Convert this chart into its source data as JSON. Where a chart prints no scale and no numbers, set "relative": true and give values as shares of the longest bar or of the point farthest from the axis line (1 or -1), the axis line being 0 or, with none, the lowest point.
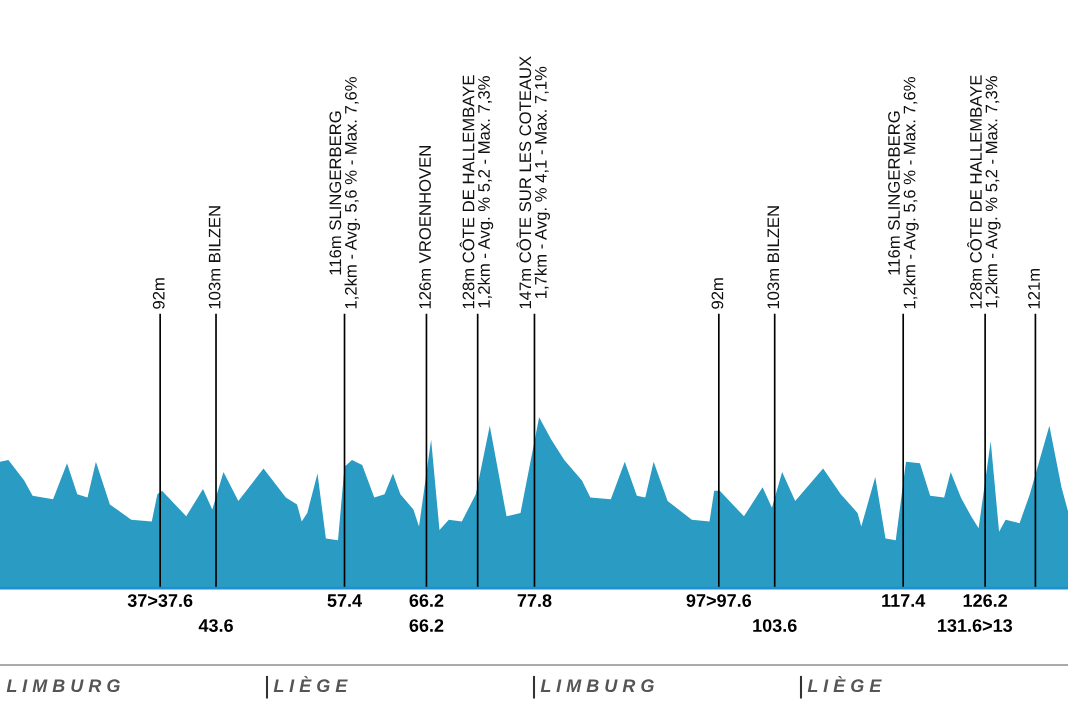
{
  "chart_data": {
    "type": "area",
    "relative": true,
    "xlim": [
      20.4,
      135.1
    ],
    "x": [
      20.4,
      21.3,
      23.0,
      23.9,
      26.1,
      27.6,
      28.7,
      29.8,
      30.7,
      32.2,
      34.5,
      36.7,
      37.3,
      37.8,
      40.4,
      42.2,
      43.2,
      44.4,
      46.0,
      48.7,
      51.1,
      52.3,
      52.8,
      53.4,
      54.5,
      55.4,
      56.7,
      57.4,
      58.2,
      59.3,
      60.6,
      61.7,
      62.6,
      63.4,
      64.8,
      65.4,
      66.7,
      67.6,
      68.6,
      70.0,
      71.5,
      73.0,
      74.8,
      76.3,
      78.3,
      79.6,
      81.0,
      82.9,
      83.8,
      86.0,
      87.5,
      88.8,
      89.7,
      90.6,
      92.1,
      94.7,
      96.6,
      97.1,
      97.7,
      100.3,
      102.3,
      103.3,
      104.4,
      105.8,
      108.8,
      110.7,
      112.5,
      112.9,
      114.4,
      115.5,
      116.6,
      117.7,
      119.2,
      120.3,
      121.8,
      122.5,
      123.6,
      124.7,
      125.5,
      126.8,
      127.7,
      128.4,
      129.9,
      131.0,
      133.1,
      134.4,
      135.1
    ],
    "series": [
      {
        "color": "#2a9cc4",
        "values": [
          0.74,
          0.75,
          0.63,
          0.54,
          0.52,
          0.73,
          0.55,
          0.53,
          0.74,
          0.49,
          0.4,
          0.39,
          0.55,
          0.57,
          0.42,
          0.58,
          0.46,
          0.68,
          0.51,
          0.7,
          0.53,
          0.49,
          0.39,
          0.44,
          0.67,
          0.29,
          0.28,
          0.71,
          0.75,
          0.72,
          0.53,
          0.55,
          0.67,
          0.55,
          0.46,
          0.36,
          0.87,
          0.34,
          0.4,
          0.39,
          0.55,
          0.95,
          0.42,
          0.44,
          1.0,
          0.87,
          0.75,
          0.63,
          0.53,
          0.52,
          0.74,
          0.54,
          0.53,
          0.74,
          0.51,
          0.4,
          0.39,
          0.57,
          0.57,
          0.42,
          0.59,
          0.47,
          0.68,
          0.51,
          0.7,
          0.55,
          0.44,
          0.36,
          0.65,
          0.29,
          0.28,
          0.74,
          0.73,
          0.54,
          0.53,
          0.68,
          0.53,
          0.42,
          0.35,
          0.86,
          0.33,
          0.4,
          0.38,
          0.55,
          0.95,
          0.59,
          0.45
        ]
      }
    ],
    "xticks": [
      {
        "value": 37.6,
        "label": "37>37.6"
      },
      57.4,
      66.2,
      77.8,
      {
        "value": 97.6,
        "label": "97>97.6"
      },
      117.4,
      126.2
    ],
    "annotations": [
      {
        "text": "43.6",
        "x": 43.6,
        "y": 0
      },
      {
        "text": "66.2",
        "x": 66.2,
        "y": 0
      },
      {
        "text": "103.6",
        "x": 103.6,
        "y": 0
      },
      {
        "text": "131.6>13",
        "x": 131.6,
        "y": 0
      },
      "L I M B U R G",
      "L I È G E",
      "L I M B U R G",
      "L I È G E"
    ],
    "ref_lines": [
      {
        "axis": "x",
        "value": 37.6,
        "label": "92m",
        "color": "#000000"
      },
      {
        "axis": "x",
        "value": 43.6,
        "label": "103m BILZEN",
        "color": "#000000"
      },
      {
        "axis": "x",
        "value": 57.4,
        "label": "116m SLINGERBERG\n1,2km - Avg. 5,6 % - Max. 7,6%",
        "color": "#000000"
      },
      {
        "axis": "x",
        "value": 66.2,
        "label": "126m VROENHOVEN",
        "color": "#000000"
      },
      {
        "axis": "x",
        "value": 71.7,
        "label": "128m CÔTE DE HALLEMBAYE\n1,2km - Avg. % 5,2 - Max. 7,3%",
        "color": "#000000"
      },
      {
        "axis": "x",
        "value": 77.8,
        "label": "147m CÔTE SUR LES COTEAUX\n1,7km - Avg. % 4,1 - Max. 7,1%",
        "color": "#000000"
      },
      {
        "axis": "x",
        "value": 97.6,
        "label": "92m",
        "color": "#000000"
      },
      {
        "axis": "x",
        "value": 103.6,
        "label": "103m BILZEN",
        "color": "#000000"
      },
      {
        "axis": "x",
        "value": 117.4,
        "label": "116m SLINGERBERG\n1,2km - Avg. 5,6 % - Max. 7,6%",
        "color": "#000000"
      },
      {
        "axis": "x",
        "value": 126.2,
        "label": "128m CÔTE DE HALLEMBAYE\n1,2km - Avg. % 5,2 - Max. 7,3%",
        "color": "#000000"
      },
      {
        "axis": "x",
        "value": 131.6,
        "label": "121m",
        "color": "#000000"
      }
    ],
    "grid": false
  }
}
